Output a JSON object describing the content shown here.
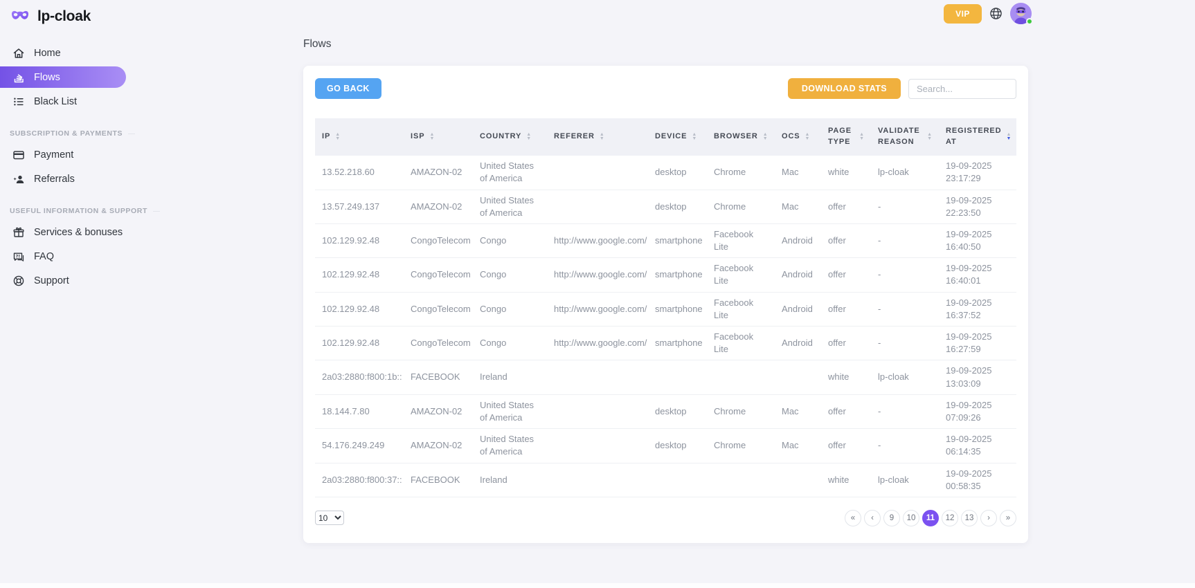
{
  "brand": {
    "name": "lp-cloak"
  },
  "topbar": {
    "vip_label": "VIP"
  },
  "sidebar": {
    "nav": [
      {
        "label": "Home",
        "icon": "home-icon",
        "active": false
      },
      {
        "label": "Flows",
        "icon": "flows-icon",
        "active": true
      },
      {
        "label": "Black List",
        "icon": "black-list-icon",
        "active": false
      }
    ],
    "sections": [
      {
        "heading": "SUBSCRIPTION & PAYMENTS",
        "items": [
          {
            "label": "Payment",
            "icon": "payment-icon"
          },
          {
            "label": "Referrals",
            "icon": "referrals-icon"
          }
        ]
      },
      {
        "heading": "USEFUL INFORMATION & SUPPORT",
        "items": [
          {
            "label": "Services & bonuses",
            "icon": "gift-icon"
          },
          {
            "label": "FAQ",
            "icon": "faq-icon"
          },
          {
            "label": "Support",
            "icon": "support-icon"
          }
        ]
      }
    ]
  },
  "page": {
    "title": "Flows"
  },
  "toolbar": {
    "go_back_label": "GO BACK",
    "download_stats_label": "DOWNLOAD STATS",
    "search_placeholder": "Search..."
  },
  "table": {
    "columns": [
      "IP",
      "ISP",
      "COUNTRY",
      "REFERER",
      "DEVICE",
      "BROWSER",
      "OCS",
      "PAGE TYPE",
      "VALIDATE REASON",
      "REGISTERED AT"
    ],
    "sorted_column": "REGISTERED AT",
    "sort_direction": "desc",
    "rows": [
      [
        "13.52.218.60",
        "AMAZON-02",
        "United States of America",
        "",
        "desktop",
        "Chrome",
        "Mac",
        "white",
        "lp-cloak",
        "19-09-2025 23:17:29"
      ],
      [
        "13.57.249.137",
        "AMAZON-02",
        "United States of America",
        "",
        "desktop",
        "Chrome",
        "Mac",
        "offer",
        "-",
        "19-09-2025 22:23:50"
      ],
      [
        "102.129.92.48",
        "CongoTelecom",
        "Congo",
        "http://www.google.com/",
        "smartphone",
        "Facebook Lite",
        "Android",
        "offer",
        "-",
        "19-09-2025 16:40:50"
      ],
      [
        "102.129.92.48",
        "CongoTelecom",
        "Congo",
        "http://www.google.com/",
        "smartphone",
        "Facebook Lite",
        "Android",
        "offer",
        "-",
        "19-09-2025 16:40:01"
      ],
      [
        "102.129.92.48",
        "CongoTelecom",
        "Congo",
        "http://www.google.com/",
        "smartphone",
        "Facebook Lite",
        "Android",
        "offer",
        "-",
        "19-09-2025 16:37:52"
      ],
      [
        "102.129.92.48",
        "CongoTelecom",
        "Congo",
        "http://www.google.com/",
        "smartphone",
        "Facebook Lite",
        "Android",
        "offer",
        "-",
        "19-09-2025 16:27:59"
      ],
      [
        "2a03:2880:f800:1b::",
        "FACEBOOK",
        "Ireland",
        "",
        "",
        "",
        "",
        "white",
        "lp-cloak",
        "19-09-2025 13:03:09"
      ],
      [
        "18.144.7.80",
        "AMAZON-02",
        "United States of America",
        "",
        "desktop",
        "Chrome",
        "Mac",
        "offer",
        "-",
        "19-09-2025 07:09:26"
      ],
      [
        "54.176.249.249",
        "AMAZON-02",
        "United States of America",
        "",
        "desktop",
        "Chrome",
        "Mac",
        "offer",
        "-",
        "19-09-2025 06:14:35"
      ],
      [
        "2a03:2880:f800:37::",
        "FACEBOOK",
        "Ireland",
        "",
        "",
        "",
        "",
        "white",
        "lp-cloak",
        "19-09-2025 00:58:35"
      ]
    ]
  },
  "pagination": {
    "page_size": "10",
    "buttons": [
      "«",
      "‹",
      "9",
      "10",
      "11",
      "12",
      "13",
      "›",
      "»"
    ],
    "active_page": "11"
  },
  "colors": {
    "background": "#f4f4f9",
    "sidebar_active_gradient_start": "#7452e6",
    "sidebar_active_gradient_end": "#a98ef5",
    "primary_blue": "#55a4f2",
    "accent_orange": "#f0b03e",
    "pagination_active_purple": "#7b51f0",
    "sort_active_blue": "#3f5ae0",
    "online_green": "#3ec93e",
    "table_header_bg": "#f0f1f6"
  }
}
